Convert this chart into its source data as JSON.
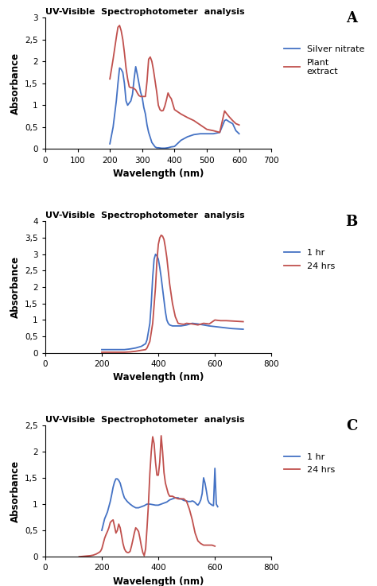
{
  "title": "UV-Visible  Spectrophotometer  analysis",
  "xlabel": "Wavelength (nm)",
  "ylabel": "Absorbance",
  "blue_color": "#4472C4",
  "red_color": "#C0504D",
  "bg_color": "#FFFFFF",
  "A": {
    "panel_label": "A",
    "xlim": [
      0,
      700
    ],
    "ylim": [
      0,
      3
    ],
    "xticks": [
      0,
      100,
      200,
      300,
      400,
      500,
      600,
      700
    ],
    "yticks": [
      0,
      0.5,
      1.0,
      1.5,
      2.0,
      2.5,
      3.0
    ],
    "yticklabels": [
      "0",
      "0,5",
      "1",
      "1,5",
      "2",
      "2,5",
      "3"
    ],
    "legend": [
      "Silver nitrate",
      "Plant\nextract"
    ],
    "blue_x": [
      200,
      210,
      220,
      225,
      230,
      235,
      240,
      245,
      250,
      255,
      260,
      265,
      270,
      275,
      280,
      285,
      290,
      295,
      300,
      305,
      310,
      315,
      320,
      330,
      340,
      345,
      350,
      360,
      370,
      380,
      390,
      400,
      420,
      440,
      460,
      480,
      500,
      520,
      540,
      555,
      560,
      570,
      580,
      590,
      600
    ],
    "blue_y": [
      0.12,
      0.5,
      1.1,
      1.5,
      1.85,
      1.82,
      1.75,
      1.5,
      1.1,
      1.0,
      1.05,
      1.1,
      1.25,
      1.6,
      1.88,
      1.7,
      1.5,
      1.3,
      1.18,
      0.95,
      0.8,
      0.55,
      0.38,
      0.15,
      0.05,
      0.03,
      0.03,
      0.02,
      0.02,
      0.03,
      0.05,
      0.06,
      0.2,
      0.28,
      0.33,
      0.35,
      0.35,
      0.35,
      0.38,
      0.65,
      0.67,
      0.62,
      0.58,
      0.42,
      0.35
    ],
    "red_x": [
      200,
      210,
      215,
      220,
      225,
      230,
      235,
      240,
      245,
      250,
      255,
      260,
      265,
      270,
      275,
      280,
      285,
      290,
      295,
      300,
      305,
      310,
      315,
      320,
      325,
      330,
      335,
      340,
      345,
      350,
      355,
      360,
      365,
      370,
      375,
      380,
      385,
      390,
      400,
      420,
      440,
      460,
      480,
      500,
      520,
      540,
      555,
      560,
      570,
      580,
      590,
      600
    ],
    "red_y": [
      1.6,
      2.05,
      2.3,
      2.55,
      2.78,
      2.82,
      2.7,
      2.5,
      2.2,
      1.85,
      1.6,
      1.42,
      1.4,
      1.4,
      1.38,
      1.35,
      1.28,
      1.22,
      1.2,
      1.2,
      1.2,
      1.2,
      1.55,
      2.05,
      2.1,
      2.0,
      1.8,
      1.55,
      1.3,
      1.0,
      0.9,
      0.87,
      0.88,
      0.98,
      1.12,
      1.28,
      1.2,
      1.15,
      0.9,
      0.8,
      0.72,
      0.65,
      0.55,
      0.45,
      0.42,
      0.38,
      0.87,
      0.82,
      0.73,
      0.65,
      0.58,
      0.55
    ]
  },
  "B": {
    "panel_label": "B",
    "xlim": [
      0,
      800
    ],
    "ylim": [
      0,
      4
    ],
    "xticks": [
      0,
      200,
      400,
      600,
      800
    ],
    "yticks": [
      0,
      0.5,
      1.0,
      1.5,
      2.0,
      2.5,
      3.0,
      3.5,
      4.0
    ],
    "yticklabels": [
      "0",
      "0,5",
      "1",
      "1,5",
      "2",
      "2,5",
      "3",
      "3,5",
      "4"
    ],
    "legend": [
      "1 hr",
      "24 hrs"
    ],
    "blue_x": [
      200,
      220,
      240,
      260,
      280,
      300,
      320,
      340,
      355,
      360,
      370,
      375,
      380,
      385,
      390,
      395,
      400,
      405,
      410,
      415,
      420,
      425,
      430,
      435,
      440,
      450,
      460,
      470,
      480,
      500,
      520,
      540,
      560,
      580,
      600,
      620,
      640,
      660,
      680,
      700
    ],
    "blue_y": [
      0.1,
      0.1,
      0.1,
      0.1,
      0.1,
      0.12,
      0.15,
      0.2,
      0.28,
      0.4,
      0.9,
      1.5,
      2.3,
      2.85,
      3.0,
      2.95,
      2.85,
      2.6,
      2.3,
      1.95,
      1.6,
      1.25,
      1.0,
      0.9,
      0.85,
      0.82,
      0.82,
      0.82,
      0.82,
      0.85,
      0.9,
      0.88,
      0.85,
      0.82,
      0.8,
      0.78,
      0.76,
      0.74,
      0.73,
      0.72
    ],
    "red_x": [
      200,
      220,
      240,
      260,
      280,
      300,
      320,
      340,
      355,
      360,
      370,
      380,
      390,
      395,
      400,
      405,
      410,
      415,
      420,
      425,
      430,
      435,
      440,
      450,
      460,
      470,
      480,
      490,
      500,
      520,
      540,
      560,
      580,
      600,
      620,
      640,
      660,
      680,
      700
    ],
    "red_y": [
      0.02,
      0.02,
      0.02,
      0.02,
      0.02,
      0.03,
      0.05,
      0.08,
      0.1,
      0.15,
      0.35,
      0.9,
      2.0,
      2.8,
      3.3,
      3.5,
      3.58,
      3.55,
      3.45,
      3.2,
      2.9,
      2.5,
      2.1,
      1.5,
      1.1,
      0.9,
      0.88,
      0.87,
      0.9,
      0.88,
      0.85,
      0.9,
      0.88,
      1.0,
      0.98,
      0.98,
      0.97,
      0.96,
      0.95
    ]
  },
  "C": {
    "panel_label": "C",
    "xlim": [
      0,
      800
    ],
    "ylim": [
      0,
      2.5
    ],
    "xticks": [
      0,
      200,
      400,
      600,
      800
    ],
    "yticks": [
      0,
      0.5,
      1.0,
      1.5,
      2.0,
      2.5
    ],
    "yticklabels": [
      "0",
      "0,5",
      "1",
      "1,5",
      "2",
      "2,5"
    ],
    "legend": [
      "1 hr",
      "24 hrs"
    ],
    "blue_x": [
      200,
      210,
      220,
      230,
      235,
      240,
      245,
      250,
      255,
      260,
      265,
      270,
      275,
      280,
      290,
      300,
      310,
      320,
      330,
      340,
      350,
      360,
      370,
      380,
      390,
      400,
      410,
      420,
      430,
      440,
      450,
      460,
      470,
      475,
      480,
      490,
      500,
      505,
      510,
      515,
      520,
      525,
      530,
      535,
      540,
      545,
      550,
      555,
      560,
      565,
      570,
      575,
      580,
      585,
      590,
      595,
      600,
      605,
      610
    ],
    "blue_y": [
      0.5,
      0.72,
      0.85,
      1.05,
      1.18,
      1.32,
      1.42,
      1.48,
      1.48,
      1.45,
      1.4,
      1.3,
      1.2,
      1.12,
      1.05,
      1.0,
      0.96,
      0.93,
      0.93,
      0.95,
      0.97,
      1.0,
      1.0,
      0.99,
      0.98,
      0.98,
      1.0,
      1.02,
      1.04,
      1.08,
      1.1,
      1.12,
      1.12,
      1.1,
      1.1,
      1.07,
      1.06,
      1.05,
      1.05,
      1.05,
      1.06,
      1.05,
      1.03,
      1.0,
      0.98,
      1.02,
      1.08,
      1.2,
      1.5,
      1.4,
      1.25,
      1.08,
      1.02,
      1.0,
      0.98,
      0.97,
      1.68,
      1.0,
      0.95
    ],
    "red_x": [
      120,
      140,
      160,
      170,
      180,
      190,
      195,
      200,
      205,
      210,
      215,
      220,
      225,
      230,
      235,
      240,
      245,
      250,
      255,
      260,
      265,
      270,
      275,
      280,
      285,
      290,
      295,
      300,
      305,
      310,
      315,
      320,
      325,
      330,
      335,
      340,
      345,
      350,
      355,
      360,
      365,
      370,
      375,
      380,
      385,
      390,
      395,
      400,
      405,
      410,
      415,
      420,
      425,
      430,
      435,
      440,
      450,
      460,
      470,
      480,
      490,
      500,
      510,
      520,
      530,
      540,
      550,
      560,
      570,
      580,
      590,
      600
    ],
    "red_y": [
      0.0,
      0.01,
      0.02,
      0.03,
      0.05,
      0.08,
      0.1,
      0.15,
      0.25,
      0.35,
      0.42,
      0.48,
      0.55,
      0.65,
      0.68,
      0.7,
      0.58,
      0.45,
      0.5,
      0.62,
      0.55,
      0.4,
      0.25,
      0.15,
      0.1,
      0.08,
      0.08,
      0.1,
      0.2,
      0.32,
      0.45,
      0.55,
      0.52,
      0.48,
      0.35,
      0.2,
      0.08,
      0.02,
      0.15,
      0.55,
      1.0,
      1.58,
      2.0,
      2.28,
      2.15,
      1.8,
      1.55,
      1.55,
      1.8,
      2.3,
      2.0,
      1.6,
      1.4,
      1.3,
      1.2,
      1.15,
      1.15,
      1.12,
      1.1,
      1.1,
      1.1,
      1.05,
      0.9,
      0.7,
      0.45,
      0.3,
      0.25,
      0.22,
      0.22,
      0.22,
      0.22,
      0.2
    ]
  }
}
